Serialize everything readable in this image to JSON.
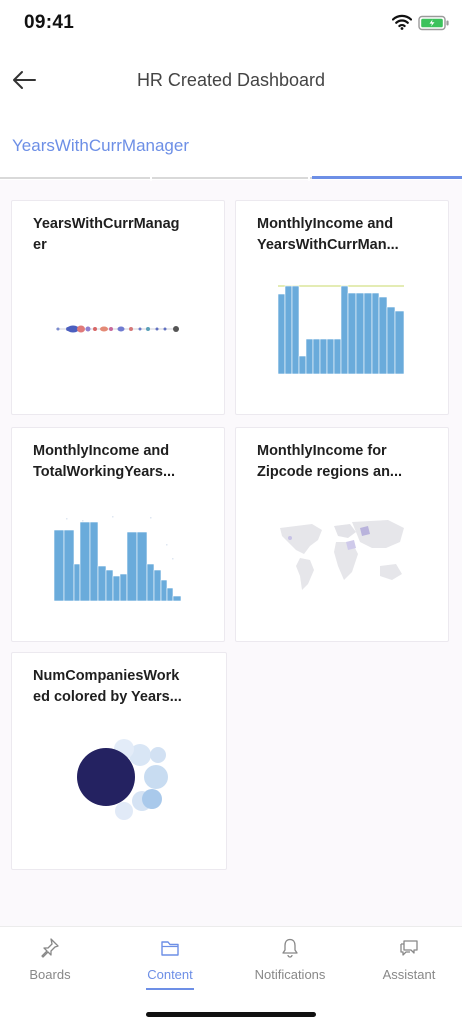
{
  "status_bar": {
    "time": "09:41"
  },
  "header": {
    "title": "HR Created Dashboard"
  },
  "tab": {
    "label": "YearsWithCurrManager"
  },
  "cards": [
    {
      "title": "YearsWithCurrManag\ner",
      "chart": "dot-strip"
    },
    {
      "title": "MonthlyIncome and\nYearsWithCurrMan...",
      "chart": "bar"
    },
    {
      "title": "MonthlyIncome and\nTotalWorkingYears...",
      "chart": "bar"
    },
    {
      "title": "MonthlyIncome for\nZipcode regions an...",
      "chart": "map"
    },
    {
      "title": "NumCompaniesWork\ned colored by Years...",
      "chart": "bubble"
    }
  ],
  "colors": {
    "accent": "#6d8fe6",
    "bar": "#6aabdb",
    "bubble_dark": "#242261",
    "bubble_light": "#c8dcf1"
  },
  "bottom_nav": {
    "items": [
      {
        "label": "Boards",
        "icon": "pin-icon"
      },
      {
        "label": "Content",
        "icon": "folder-icon",
        "active": true
      },
      {
        "label": "Notifications",
        "icon": "bell-icon"
      },
      {
        "label": "Assistant",
        "icon": "chat-icon"
      }
    ]
  }
}
